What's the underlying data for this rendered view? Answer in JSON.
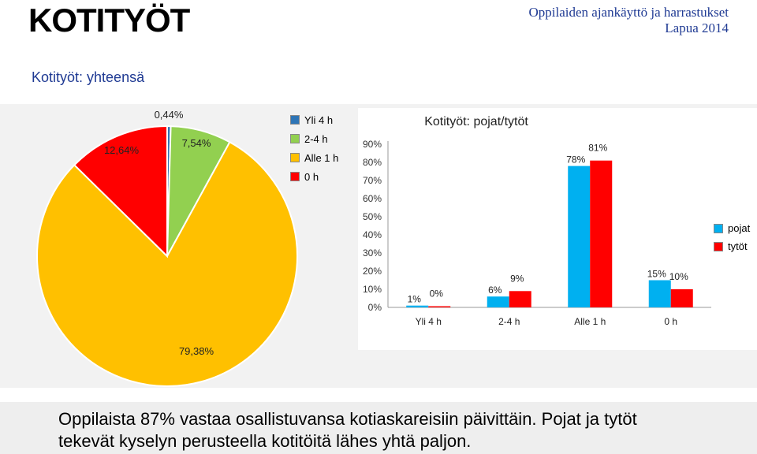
{
  "header": {
    "title": "KOTITYÖT",
    "org_line1": "Oppilaiden ajankäyttö ja harrastukset",
    "org_line2": "Lapua 2014"
  },
  "subtitle": "Kotityöt: yhteensä",
  "legend": [
    "Yli 4 h",
    "2-4 h",
    "Alle 1 h",
    "0 h"
  ],
  "bar_legend": [
    "pojat",
    "tytöt"
  ],
  "footer": {
    "line1": "Oppilaista 87% vastaa osallistuvansa kotiaskareisiin päivittäin. Pojat ja tytöt",
    "line2": "tekevät kyselyn perusteella kotitöitä lähes yhtä paljon."
  },
  "chart_data": [
    {
      "type": "pie",
      "title": "",
      "slices": [
        {
          "label": "Yli 4 h",
          "value": 0.44,
          "value_label": "0,44%",
          "color": "#2e75b6"
        },
        {
          "label": "2-4 h",
          "value": 7.54,
          "value_label": "7,54%",
          "color": "#92d050"
        },
        {
          "label": "Alle 1 h",
          "value": 79.38,
          "value_label": "79,38%",
          "color": "#ffc000"
        },
        {
          "label": "0 h",
          "value": 12.64,
          "value_label": "12,64%",
          "color": "#ff0000"
        }
      ],
      "legend_position": "right"
    },
    {
      "type": "bar",
      "title": "Kotityöt: pojat/tytöt",
      "categories": [
        "Yli 4 h",
        "2-4 h",
        "Alle 1 h",
        "0 h"
      ],
      "series": [
        {
          "name": "pojat",
          "values": [
            1,
            6,
            78,
            15
          ],
          "labels": [
            "1%",
            "6%",
            "78%",
            "15%"
          ],
          "color": "#00b0f0"
        },
        {
          "name": "tytöt",
          "values": [
            0,
            9,
            81,
            10
          ],
          "labels": [
            "0%",
            "9%",
            "81%",
            "10%"
          ],
          "color": "#ff0000"
        }
      ],
      "yticks": [
        "0%",
        "10%",
        "20%",
        "30%",
        "40%",
        "50%",
        "60%",
        "70%",
        "80%",
        "90%"
      ],
      "ylim": [
        0,
        90
      ],
      "xlabel": "",
      "ylabel": "",
      "grid": false,
      "legend_position": "right"
    }
  ]
}
